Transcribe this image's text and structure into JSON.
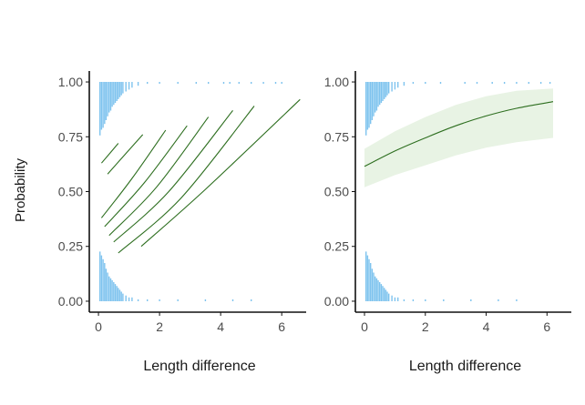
{
  "figure": {
    "ylabel": "Probability"
  },
  "chart_data": [
    {
      "type": "line",
      "xlabel": "Length difference",
      "ylabel": "Probability",
      "xlim": [
        -0.3,
        6.8
      ],
      "ylim": [
        -0.05,
        1.05
      ],
      "x_ticks": [
        "0",
        "2",
        "4",
        "6"
      ],
      "y_ticks": [
        "0.00",
        "0.25",
        "0.50",
        "0.75",
        "1.00"
      ],
      "grid": false,
      "colors": {
        "line": "#2d6e1f",
        "rug": "#7ec3ee"
      },
      "series": [
        {
          "x": [
            0.1,
            0.65
          ],
          "y": [
            0.63,
            0.72
          ]
        },
        {
          "x": [
            0.3,
            1.45
          ],
          "y": [
            0.58,
            0.76
          ]
        },
        {
          "x": [
            0.1,
            1.1,
            2.2
          ],
          "y": [
            0.38,
            0.56,
            0.78
          ]
        },
        {
          "x": [
            0.2,
            1.5,
            2.9
          ],
          "y": [
            0.34,
            0.54,
            0.8
          ]
        },
        {
          "x": [
            0.35,
            1.9,
            3.6
          ],
          "y": [
            0.3,
            0.52,
            0.84
          ]
        },
        {
          "x": [
            0.5,
            2.3,
            4.4
          ],
          "y": [
            0.27,
            0.5,
            0.87
          ]
        },
        {
          "x": [
            0.65,
            2.7,
            5.1
          ],
          "y": [
            0.22,
            0.47,
            0.89
          ]
        },
        {
          "x": [
            1.4,
            3.5,
            6.6
          ],
          "y": [
            0.25,
            0.51,
            0.92
          ]
        }
      ],
      "rug_top": {
        "x": [
          0.05,
          0.1,
          0.15,
          0.2,
          0.25,
          0.3,
          0.35,
          0.4,
          0.45,
          0.5,
          0.55,
          0.6,
          0.65,
          0.7,
          0.75,
          0.8,
          0.9,
          1.0,
          1.1,
          1.3,
          1.6,
          2.0,
          2.6,
          3.2,
          3.6,
          4.1,
          4.3,
          4.6,
          5.0,
          5.4,
          5.8,
          6.0
        ],
        "count": [
          28,
          25,
          24,
          22,
          20,
          18,
          16,
          15,
          13,
          12,
          11,
          10,
          9,
          8,
          7,
          6,
          5,
          4,
          3,
          2,
          1,
          1,
          1,
          1,
          1,
          1,
          1,
          1,
          1,
          1,
          1,
          1
        ]
      },
      "rug_bottom": {
        "x": [
          0.05,
          0.1,
          0.15,
          0.2,
          0.25,
          0.3,
          0.35,
          0.4,
          0.45,
          0.5,
          0.55,
          0.6,
          0.65,
          0.7,
          0.75,
          0.8,
          0.9,
          1.0,
          1.1,
          1.3,
          1.6,
          2.0,
          2.6,
          3.5,
          4.4,
          5.0
        ],
        "count": [
          26,
          24,
          22,
          20,
          17,
          15,
          13,
          12,
          11,
          10,
          9,
          8,
          7,
          6,
          5,
          4,
          3,
          2,
          2,
          1,
          1,
          1,
          1,
          1,
          1,
          1
        ]
      }
    },
    {
      "type": "line",
      "xlabel": "Length difference",
      "ylabel": "",
      "xlim": [
        -0.3,
        6.8
      ],
      "ylim": [
        -0.05,
        1.05
      ],
      "x_ticks": [
        "0",
        "2",
        "4",
        "6"
      ],
      "y_ticks": [
        "0.00",
        "0.25",
        "0.50",
        "0.75",
        "1.00"
      ],
      "grid": false,
      "colors": {
        "line": "#2d6e1f",
        "band": "#e8f3e4",
        "rug": "#7ec3ee"
      },
      "series": [
        {
          "x": [
            0,
            1,
            2,
            3,
            4,
            5,
            6.2
          ],
          "y": [
            0.615,
            0.685,
            0.745,
            0.8,
            0.845,
            0.88,
            0.91
          ]
        }
      ],
      "band": {
        "x": [
          0,
          1,
          2,
          3,
          4,
          5,
          6.2
        ],
        "lower": [
          0.52,
          0.575,
          0.62,
          0.665,
          0.7,
          0.725,
          0.745
        ],
        "upper": [
          0.695,
          0.775,
          0.84,
          0.895,
          0.935,
          0.96,
          0.97
        ]
      },
      "rug_top": {
        "x": [
          0.05,
          0.1,
          0.15,
          0.2,
          0.25,
          0.3,
          0.35,
          0.4,
          0.45,
          0.5,
          0.55,
          0.6,
          0.65,
          0.7,
          0.75,
          0.8,
          0.9,
          1.0,
          1.1,
          1.3,
          1.6,
          2.0,
          2.5,
          3.3,
          3.7,
          4.2,
          4.6,
          5.0,
          5.4,
          5.8,
          6.1
        ],
        "count": [
          28,
          25,
          24,
          22,
          20,
          18,
          16,
          15,
          13,
          12,
          11,
          10,
          9,
          8,
          7,
          6,
          5,
          4,
          3,
          2,
          1,
          1,
          1,
          1,
          1,
          1,
          1,
          1,
          1,
          1,
          1
        ]
      },
      "rug_bottom": {
        "x": [
          0.05,
          0.1,
          0.15,
          0.2,
          0.25,
          0.3,
          0.35,
          0.4,
          0.45,
          0.5,
          0.55,
          0.6,
          0.65,
          0.7,
          0.75,
          0.8,
          0.9,
          1.0,
          1.1,
          1.3,
          1.6,
          2.0,
          2.6,
          3.5,
          4.4,
          5.0
        ],
        "count": [
          26,
          24,
          22,
          20,
          17,
          15,
          13,
          12,
          11,
          10,
          9,
          8,
          7,
          6,
          5,
          4,
          3,
          2,
          2,
          1,
          1,
          1,
          1,
          1,
          1,
          1
        ]
      }
    }
  ]
}
